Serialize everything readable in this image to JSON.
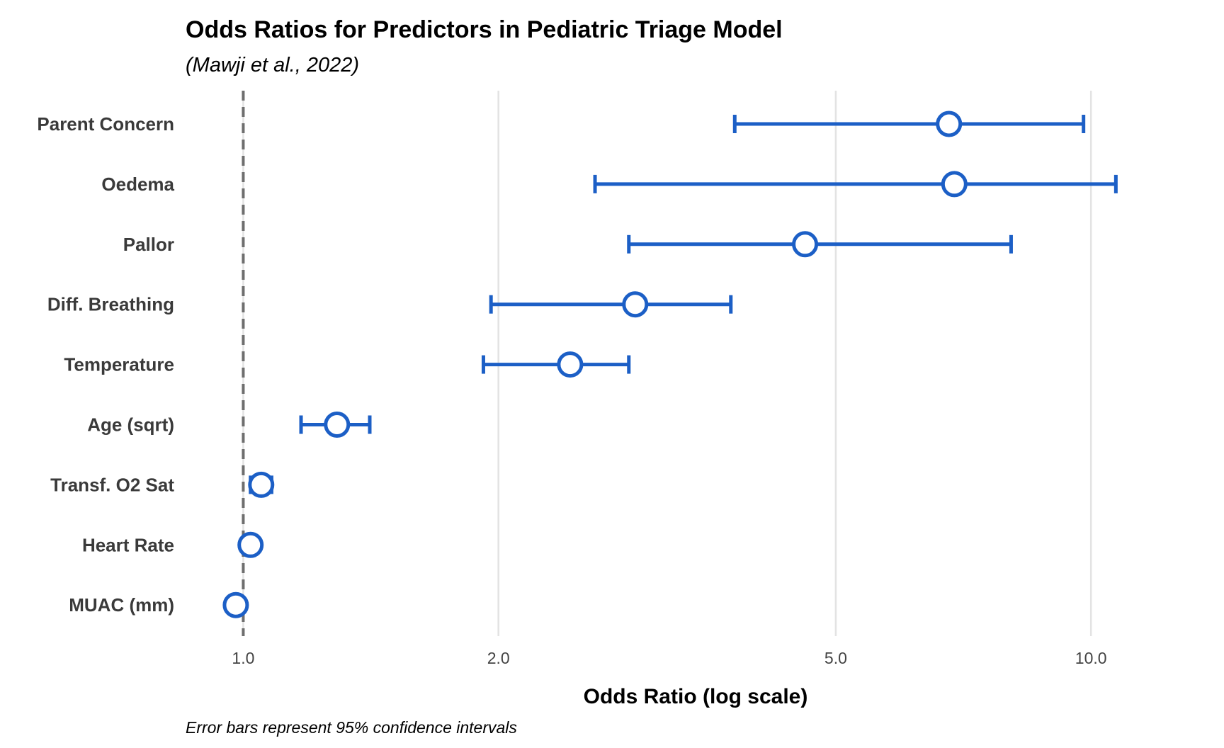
{
  "chart_data": {
    "type": "scatter",
    "title": "Odds Ratios for Predictors in Pediatric Triage Model",
    "subtitle": "(Mawji et al., 2022)",
    "xlabel": "Odds Ratio (log scale)",
    "caption": "Error bars represent 95% confidence intervals",
    "x_scale": "log",
    "xlim": [
      0.855,
      13.6
    ],
    "xticks": [
      {
        "value": 1.0,
        "label": "1.0"
      },
      {
        "value": 2.0,
        "label": "2.0"
      },
      {
        "value": 5.0,
        "label": "5.0"
      },
      {
        "value": 10.0,
        "label": "10.0"
      }
    ],
    "reference_line": 1.0,
    "grid": "vertical major",
    "color": "#1c5fc6",
    "points": [
      {
        "label": "Parent Concern",
        "or": 6.8,
        "lower": 3.8,
        "upper": 9.8
      },
      {
        "label": "Oedema",
        "or": 6.9,
        "lower": 2.6,
        "upper": 10.7
      },
      {
        "label": "Pallor",
        "or": 4.6,
        "lower": 2.85,
        "upper": 8.05
      },
      {
        "label": "Diff. Breathing",
        "or": 2.9,
        "lower": 1.96,
        "upper": 3.76
      },
      {
        "label": "Temperature",
        "or": 2.43,
        "lower": 1.92,
        "upper": 2.85
      },
      {
        "label": "Age (sqrt)",
        "or": 1.29,
        "lower": 1.17,
        "upper": 1.41
      },
      {
        "label": "Transf. O2 Sat",
        "or": 1.05,
        "lower": 1.02,
        "upper": 1.08
      },
      {
        "label": "Heart Rate",
        "or": 1.02,
        "lower": 1.01,
        "upper": 1.03
      },
      {
        "label": "MUAC (mm)",
        "or": 0.98,
        "lower": 0.97,
        "upper": 0.99
      }
    ]
  }
}
